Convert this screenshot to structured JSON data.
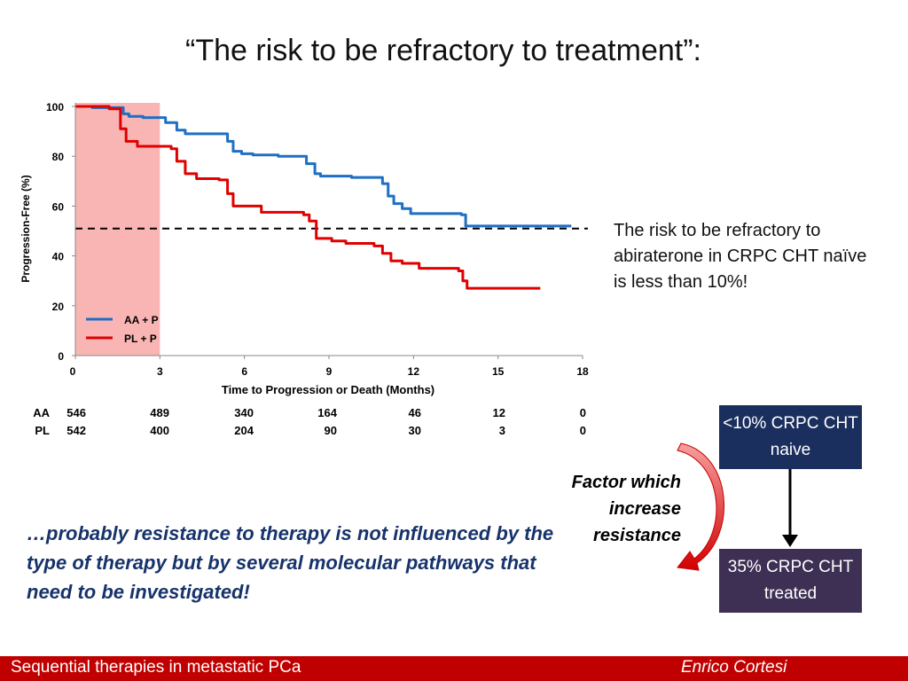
{
  "slide": {
    "title": "“The risk to be refractory to treatment”:",
    "risk_note": "The risk to be refractory to abiraterone in CRPC CHT naïve is less than 10%!",
    "box_top": "<10% CRPC CHT naive",
    "box_bottom": "35% CRPC CHT treated",
    "factor_text": "Factor which increase resistance",
    "conclusion": "…probably resistance to therapy is not influenced by the type of therapy but by several molecular pathways that need to be investigated!",
    "footer_left": "Sequential therapies in metastatic PCa",
    "footer_right": "Enrico  Cortesi"
  },
  "colors": {
    "aa_line": "#1f6fc4",
    "pl_line": "#e00000",
    "shade": "#f9b4b4",
    "box_top": "#1a2f5e",
    "box_bottom": "#3e2f55",
    "footer": "#c00000",
    "conclusion_text": "#17336b"
  },
  "chart_data": {
    "type": "line",
    "title": "",
    "xlabel": "Time to Progression or Death (Months)",
    "ylabel": "Progression-Free (%)",
    "xlim": [
      0,
      18
    ],
    "ylim": [
      0,
      100
    ],
    "x_ticks": [
      0,
      3,
      6,
      9,
      12,
      15,
      18
    ],
    "y_ticks": [
      0,
      20,
      40,
      60,
      80,
      100
    ],
    "shaded_interval_x": [
      0,
      3
    ],
    "reference_line_y": 51,
    "legend_position": "bottom-left",
    "series": [
      {
        "name": "AA + P",
        "color": "#1f6fc4",
        "x": [
          0,
          0.6,
          1.2,
          1.7,
          1.9,
          2.4,
          3.2,
          3.6,
          3.9,
          5.4,
          5.6,
          5.9,
          6.3,
          7.2,
          8.2,
          8.5,
          8.7,
          9.8,
          10.9,
          11.1,
          11.3,
          11.6,
          11.9,
          13.7,
          13.85,
          17.6
        ],
        "y": [
          100,
          99.5,
          99.5,
          97,
          96,
          95.5,
          93.5,
          90.5,
          89,
          86,
          82,
          81,
          80.5,
          80,
          77,
          73,
          72,
          71.5,
          69,
          64,
          61,
          59,
          57,
          56.5,
          52,
          52
        ]
      },
      {
        "name": "PL + P",
        "color": "#e00000",
        "x": [
          0,
          1.2,
          1.6,
          1.8,
          2.2,
          3.4,
          3.6,
          3.9,
          4.3,
          5.1,
          5.4,
          5.6,
          6.6,
          8.1,
          8.3,
          8.55,
          9.1,
          9.6,
          10.6,
          10.9,
          11.2,
          11.6,
          12.2,
          13.6,
          13.75,
          13.9,
          16.5
        ],
        "y": [
          100,
          99,
          91,
          86,
          84,
          83,
          78,
          73,
          71,
          70.5,
          65,
          60,
          57.5,
          56.5,
          54,
          47,
          46,
          45,
          44,
          41,
          38,
          37,
          35,
          34,
          30,
          27,
          27
        ]
      }
    ],
    "risk_table": {
      "times": [
        0,
        3,
        6,
        9,
        12,
        15,
        18
      ],
      "rows": [
        {
          "label": "AA",
          "values": [
            546,
            489,
            340,
            164,
            46,
            12,
            0
          ]
        },
        {
          "label": "PL",
          "values": [
            542,
            400,
            204,
            90,
            30,
            3,
            0
          ]
        }
      ]
    }
  }
}
